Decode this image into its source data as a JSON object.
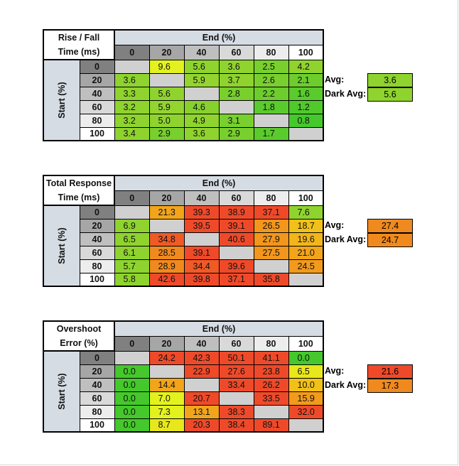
{
  "colors": {
    "header_blue": "#d6dce4",
    "gray0": "#808080",
    "gray20": "#a6a6a6",
    "gray40": "#bfbfbf",
    "gray60": "#d9d9d9",
    "gray80": "#ededed",
    "diag": "#d0d0d0"
  },
  "chart_data": [
    {
      "type": "table",
      "title_line1": "Rise / Fall",
      "title_line2": "Time (ms)",
      "end_label": "End (%)",
      "start_label": "Start (%)",
      "levels": [
        "0",
        "20",
        "40",
        "60",
        "80",
        "100"
      ],
      "rows": [
        [
          "",
          "9.6",
          "5.6",
          "3.6",
          "2.5",
          "4.2"
        ],
        [
          "3.6",
          "",
          "5.9",
          "3.7",
          "2.6",
          "2.1"
        ],
        [
          "3.3",
          "5.6",
          "",
          "2.8",
          "2.2",
          "1.6"
        ],
        [
          "3.2",
          "5.9",
          "4.6",
          "",
          "1.8",
          "1.2"
        ],
        [
          "3.2",
          "5.0",
          "4.9",
          "3.1",
          "",
          "0.8"
        ],
        [
          "3.4",
          "2.9",
          "3.6",
          "2.9",
          "1.7",
          ""
        ]
      ],
      "colors": [
        [
          "#d0d0d0",
          "#e3f21e",
          "#8fd32e",
          "#8fd32e",
          "#78cf2d",
          "#8fd32e"
        ],
        [
          "#8fd32e",
          "#d0d0d0",
          "#93d42e",
          "#8fd32e",
          "#78cf2d",
          "#6ccd2d"
        ],
        [
          "#8fd32e",
          "#8fd32e",
          "#d0d0d0",
          "#78cf2d",
          "#6ccd2d",
          "#5acb2c"
        ],
        [
          "#8fd32e",
          "#93d42e",
          "#86d12d",
          "#d0d0d0",
          "#5acb2c",
          "#50c92c"
        ],
        [
          "#8fd32e",
          "#8fd32e",
          "#8fd32e",
          "#78cf2d",
          "#d0d0d0",
          "#45c82b"
        ],
        [
          "#8fd32e",
          "#78cf2d",
          "#8fd32e",
          "#78cf2d",
          "#5acb2c",
          "#d0d0d0"
        ]
      ],
      "avg_label": "Avg:",
      "avg": "3.6",
      "avg_color": "#8fd32e",
      "dark_avg_label": "Dark Avg:",
      "dark_avg": "5.6",
      "dark_avg_color": "#8fd32e"
    },
    {
      "type": "table",
      "title_line1": "Total Response",
      "title_line2": "Time (ms)",
      "end_label": "End (%)",
      "start_label": "Start (%)",
      "levels": [
        "0",
        "20",
        "40",
        "60",
        "80",
        "100"
      ],
      "rows": [
        [
          "",
          "21.3",
          "39.3",
          "38.9",
          "37.1",
          "7.6"
        ],
        [
          "6.9",
          "",
          "39.5",
          "39.1",
          "26.5",
          "18.7"
        ],
        [
          "6.5",
          "34.8",
          "",
          "40.6",
          "27.9",
          "19.6"
        ],
        [
          "6.1",
          "28.5",
          "39.1",
          "",
          "27.5",
          "21.0"
        ],
        [
          "5.7",
          "28.9",
          "34.4",
          "39.6",
          "",
          "24.5"
        ],
        [
          "5.8",
          "42.6",
          "39.8",
          "37.1",
          "35.8",
          ""
        ]
      ],
      "colors": [
        [
          "#d0d0d0",
          "#f2a51a",
          "#ee4a2a",
          "#ee4a2a",
          "#ee4a2a",
          "#8fd32e"
        ],
        [
          "#8fd32e",
          "#d0d0d0",
          "#ee4a2a",
          "#ee4a2a",
          "#f2961c",
          "#f2c118"
        ],
        [
          "#8fd32e",
          "#ef5a26",
          "#d0d0d0",
          "#ee4a2a",
          "#f2961c",
          "#f2b61a"
        ],
        [
          "#8fd32e",
          "#f08a1e",
          "#ee4a2a",
          "#d0d0d0",
          "#f2961c",
          "#f2a51a"
        ],
        [
          "#8fd32e",
          "#f08a1e",
          "#ef5a26",
          "#ee4a2a",
          "#d0d0d0",
          "#f29a1c"
        ],
        [
          "#8fd32e",
          "#ee4a2a",
          "#ee4a2a",
          "#ee4a2a",
          "#ee4a2a",
          "#d0d0d0"
        ]
      ],
      "avg_label": "Avg:",
      "avg": "27.4",
      "avg_color": "#f08a1e",
      "dark_avg_label": "Dark Avg:",
      "dark_avg": "24.7",
      "dark_avg_color": "#f08a1e"
    },
    {
      "type": "table",
      "title_line1": "Overshoot",
      "title_line2": "Error (%)",
      "end_label": "End (%)",
      "start_label": "Start (%)",
      "levels": [
        "0",
        "20",
        "40",
        "60",
        "80",
        "100"
      ],
      "rows": [
        [
          "",
          "24.2",
          "42.3",
          "50.1",
          "41.1",
          "0.0"
        ],
        [
          "0.0",
          "",
          "22.9",
          "27.6",
          "23.8",
          "6.5"
        ],
        [
          "0.0",
          "14.4",
          "",
          "33.4",
          "26.2",
          "10.0"
        ],
        [
          "0.0",
          "7.0",
          "20.7",
          "",
          "33.5",
          "15.9"
        ],
        [
          "0.0",
          "7.3",
          "13.1",
          "38.3",
          "",
          "32.0"
        ],
        [
          "0.0",
          "8.7",
          "20.3",
          "38.4",
          "89.1",
          ""
        ]
      ],
      "colors": [
        [
          "#d0d0d0",
          "#ee4a2a",
          "#ee4a2a",
          "#ee4a2a",
          "#ee4a2a",
          "#45c82b"
        ],
        [
          "#45c82b",
          "#d0d0d0",
          "#ee4a2a",
          "#ee4a2a",
          "#ee4a2a",
          "#e7e71c"
        ],
        [
          "#45c82b",
          "#f2a51a",
          "#d0d0d0",
          "#ee4a2a",
          "#ee4a2a",
          "#f2c118"
        ],
        [
          "#45c82b",
          "#e3f21e",
          "#ee4a2a",
          "#d0d0d0",
          "#ee4a2a",
          "#f29a1c"
        ],
        [
          "#45c82b",
          "#e3f21e",
          "#f2a51a",
          "#ee4a2a",
          "#d0d0d0",
          "#ee4a2a"
        ],
        [
          "#45c82b",
          "#e7e71c",
          "#ee4a2a",
          "#ee4a2a",
          "#ee4a2a",
          "#d0d0d0"
        ]
      ],
      "avg_label": "Avg:",
      "avg": "21.6",
      "avg_color": "#ee4a2a",
      "dark_avg_label": "Dark Avg:",
      "dark_avg": "17.3",
      "dark_avg_color": "#f08a1e"
    }
  ]
}
